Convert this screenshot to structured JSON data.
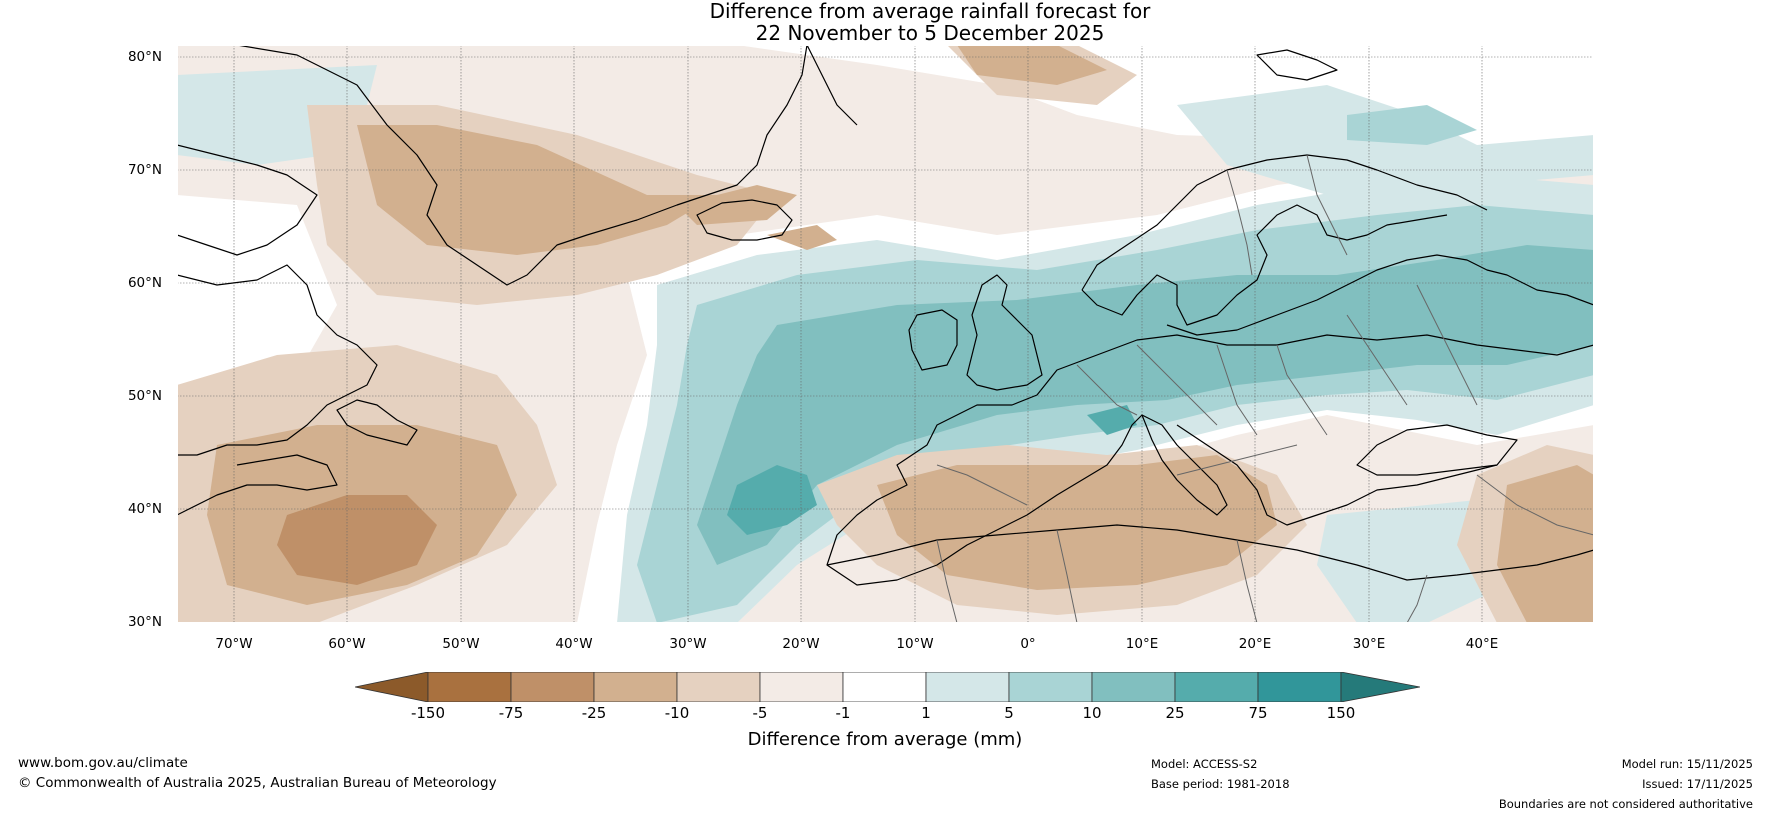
{
  "title": {
    "line1": "Difference from average rainfall forecast for",
    "line2": "22 November to 5 December 2025"
  },
  "map": {
    "lat_labels": [
      "80°N",
      "70°N",
      "60°N",
      "50°N",
      "40°N",
      "30°N"
    ],
    "lon_labels": [
      "70°W",
      "60°W",
      "50°W",
      "40°W",
      "30°W",
      "20°W",
      "10°W",
      "0°",
      "10°E",
      "20°E",
      "30°E",
      "40°E"
    ],
    "regions": [
      "Greenland",
      "Iceland",
      "Scandinavia",
      "British Isles",
      "Western Europe",
      "Mediterranean",
      "North Atlantic",
      "Newfoundland"
    ]
  },
  "colorbar": {
    "labels": [
      "-150",
      "-75",
      "-25",
      "-10",
      "-5",
      "-1",
      "1",
      "5",
      "10",
      "25",
      "75",
      "150"
    ],
    "colors": [
      "#8c5a2a",
      "#a9713f",
      "#bf9068",
      "#d2b08f",
      "#e5d1c0",
      "#f3ebe6",
      "#ffffff",
      "#d4e7e8",
      "#a9d4d5",
      "#81bfbf",
      "#55acac",
      "#31969a",
      "#257a7a"
    ],
    "title": "Difference from average (mm)"
  },
  "footer": {
    "url": "www.bom.gov.au/climate",
    "copyright": "© Commonwealth of Australia 2025, Australian Bureau of Meteorology",
    "model": "Model: ACCESS-S2",
    "base_period": "Base period: 1981-2018",
    "model_run": "Model run: 15/11/2025",
    "issued": "Issued: 17/11/2025",
    "disclaimer": "Boundaries are not considered authoritative"
  }
}
